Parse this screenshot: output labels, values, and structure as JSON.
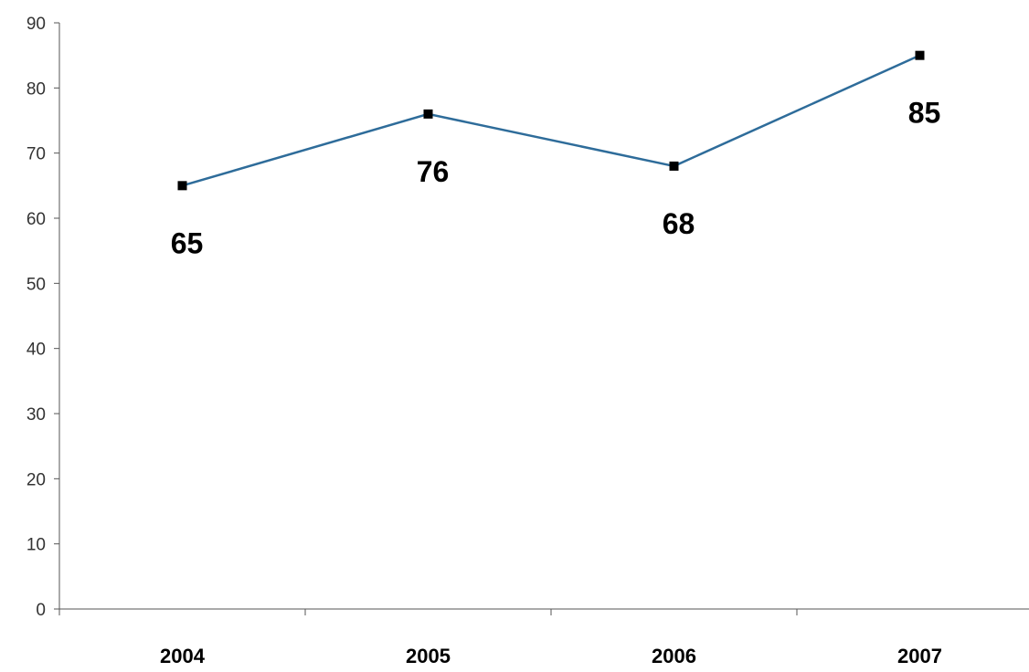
{
  "chart_data": {
    "type": "line",
    "title": "",
    "xlabel": "",
    "ylabel": "",
    "categories": [
      "2004",
      "2005",
      "2006",
      "2007"
    ],
    "series": [
      {
        "values": [
          65,
          76,
          68,
          85
        ],
        "color": "#2e6c9a",
        "marker_color": "#000000"
      }
    ],
    "data_labels": [
      "65",
      "76",
      "68",
      "85"
    ],
    "ylim": [
      0,
      90
    ],
    "y_ticks": [
      "0",
      "10",
      "20",
      "30",
      "40",
      "50",
      "60",
      "70",
      "80",
      "90"
    ],
    "grid": false,
    "legend": "none"
  }
}
